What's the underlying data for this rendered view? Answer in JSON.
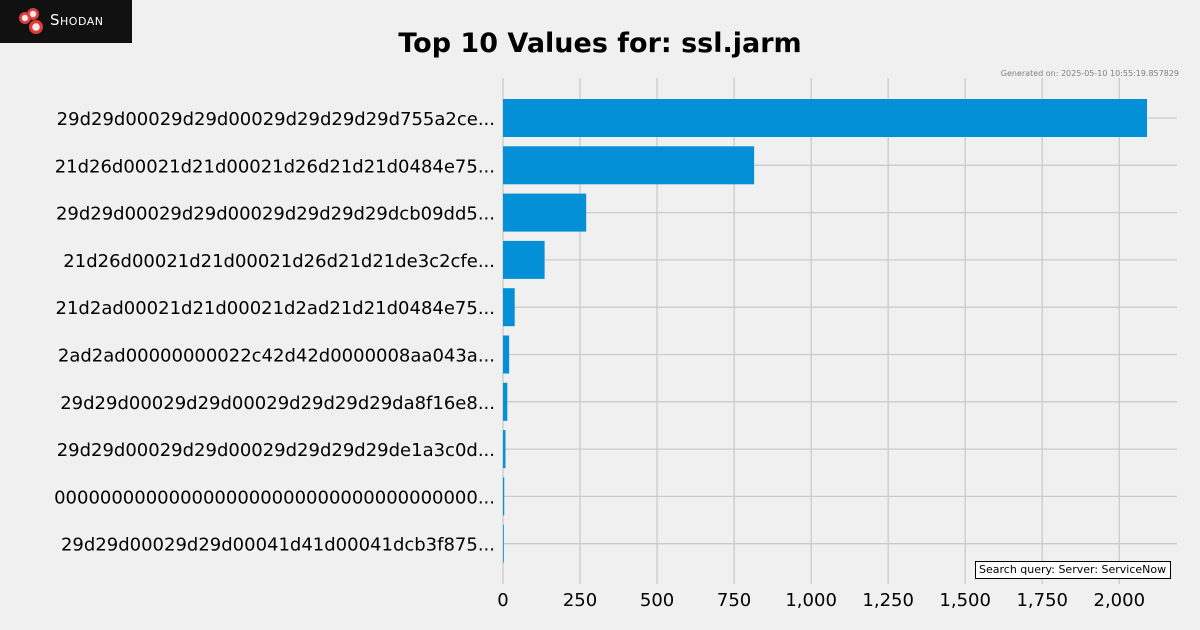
{
  "branding": {
    "logo_text": "Shodan"
  },
  "colors": {
    "bar": "#0390d6",
    "grid": "#cbcbcb",
    "background": "#f0f0f0"
  },
  "generated_text": "Generated on: 2025-05-10 10:55:19.857829",
  "search_query_text": "Search query: Server: ServiceNow",
  "chart_data": {
    "type": "bar",
    "orientation": "horizontal",
    "title": "Top 10 Values for: ssl.jarm",
    "xlabel": "",
    "ylabel": "",
    "xlim": [
      0,
      2200
    ],
    "xticks": [
      0,
      250,
      500,
      750,
      1000,
      1250,
      1500,
      1750,
      2000
    ],
    "xtick_labels": [
      "0",
      "250",
      "500",
      "750",
      "1,000",
      "1,250",
      "1,500",
      "1,750",
      "2,000"
    ],
    "grid": true,
    "categories": [
      "29d29d00029d29d00029d29d29d29d755a2ce...",
      "21d26d00021d21d00021d26d21d21d0484e75...",
      "29d29d00029d29d00029d29d29d29dcb09dd5...",
      "21d26d00021d21d00021d26d21d21de3c2cfe...",
      "21d2ad00021d21d00021d2ad21d21d0484e75...",
      "2ad2ad00000000022c42d42d0000008aa043a...",
      "29d29d00029d29d00029d29d29d29da8f16e8...",
      "29d29d00029d29d00029d29d29d29de1a3c0d...",
      "0000000000000000000000000000000000000...",
      "29d29d00029d29d00041d41d00041dcb3f875..."
    ],
    "values": [
      2090,
      815,
      270,
      135,
      38,
      20,
      14,
      8,
      4,
      1
    ]
  }
}
